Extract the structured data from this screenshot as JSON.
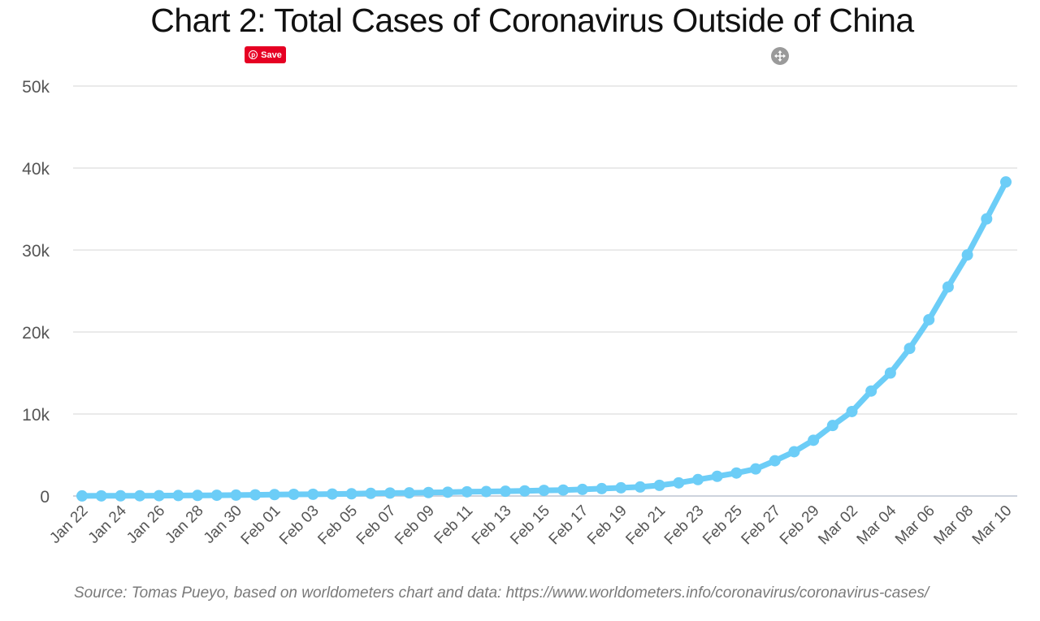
{
  "title": "Chart 2: Total Cases of Coronavirus Outside of China",
  "save_button": {
    "label": "Save",
    "icon": "pinterest-icon",
    "color": "#e60023"
  },
  "zoom_icon": "fullscreen-icon",
  "source": "Source: Tomas Pueyo, based on worldometers chart and data: https://www.worldometers.info/coronavirus/coronavirus-cases/",
  "colors": {
    "series": "#6ccdf7",
    "grid": "#e3e3e3",
    "axis_text": "#555555"
  },
  "chart_data": {
    "type": "line",
    "title": "Chart 2: Total Cases of Coronavirus Outside of China",
    "xlabel": "",
    "ylabel": "",
    "ylim": [
      0,
      50000
    ],
    "y_ticks": [
      0,
      10000,
      20000,
      30000,
      40000,
      50000
    ],
    "y_tick_labels": [
      "0",
      "10k",
      "20k",
      "30k",
      "40k",
      "50k"
    ],
    "grid": true,
    "legend": "none",
    "x_tick_labels": [
      "Jan 22",
      "Jan 24",
      "Jan 26",
      "Jan 28",
      "Jan 30",
      "Feb 01",
      "Feb 03",
      "Feb 05",
      "Feb 07",
      "Feb 09",
      "Feb 11",
      "Feb 13",
      "Feb 15",
      "Feb 17",
      "Feb 19",
      "Feb 21",
      "Feb 23",
      "Feb 25",
      "Feb 27",
      "Feb 29",
      "Mar 02",
      "Mar 04",
      "Mar 06",
      "Mar 08",
      "Mar 10"
    ],
    "x": [
      "Jan 22",
      "Jan 23",
      "Jan 24",
      "Jan 25",
      "Jan 26",
      "Jan 27",
      "Jan 28",
      "Jan 29",
      "Jan 30",
      "Jan 31",
      "Feb 01",
      "Feb 02",
      "Feb 03",
      "Feb 04",
      "Feb 05",
      "Feb 06",
      "Feb 07",
      "Feb 08",
      "Feb 09",
      "Feb 10",
      "Feb 11",
      "Feb 12",
      "Feb 13",
      "Feb 14",
      "Feb 15",
      "Feb 16",
      "Feb 17",
      "Feb 18",
      "Feb 19",
      "Feb 20",
      "Feb 21",
      "Feb 22",
      "Feb 23",
      "Feb 24",
      "Feb 25",
      "Feb 26",
      "Feb 27",
      "Feb 28",
      "Feb 29",
      "Mar 01",
      "Mar 02",
      "Mar 03",
      "Mar 04",
      "Mar 05",
      "Mar 06",
      "Mar 07",
      "Mar 08",
      "Mar 09",
      "Mar 10"
    ],
    "series": [
      {
        "values": [
          10,
          15,
          20,
          30,
          40,
          60,
          70,
          90,
          110,
          140,
          170,
          200,
          210,
          240,
          270,
          320,
          360,
          380,
          420,
          460,
          510,
          540,
          580,
          620,
          680,
          720,
          800,
          900,
          1000,
          1100,
          1300,
          1600,
          2000,
          2400,
          2800,
          3300,
          4300,
          5400,
          6800,
          8600,
          10300,
          12800,
          15000,
          18000,
          21500,
          25500,
          29400,
          33800,
          38300
        ]
      }
    ]
  }
}
